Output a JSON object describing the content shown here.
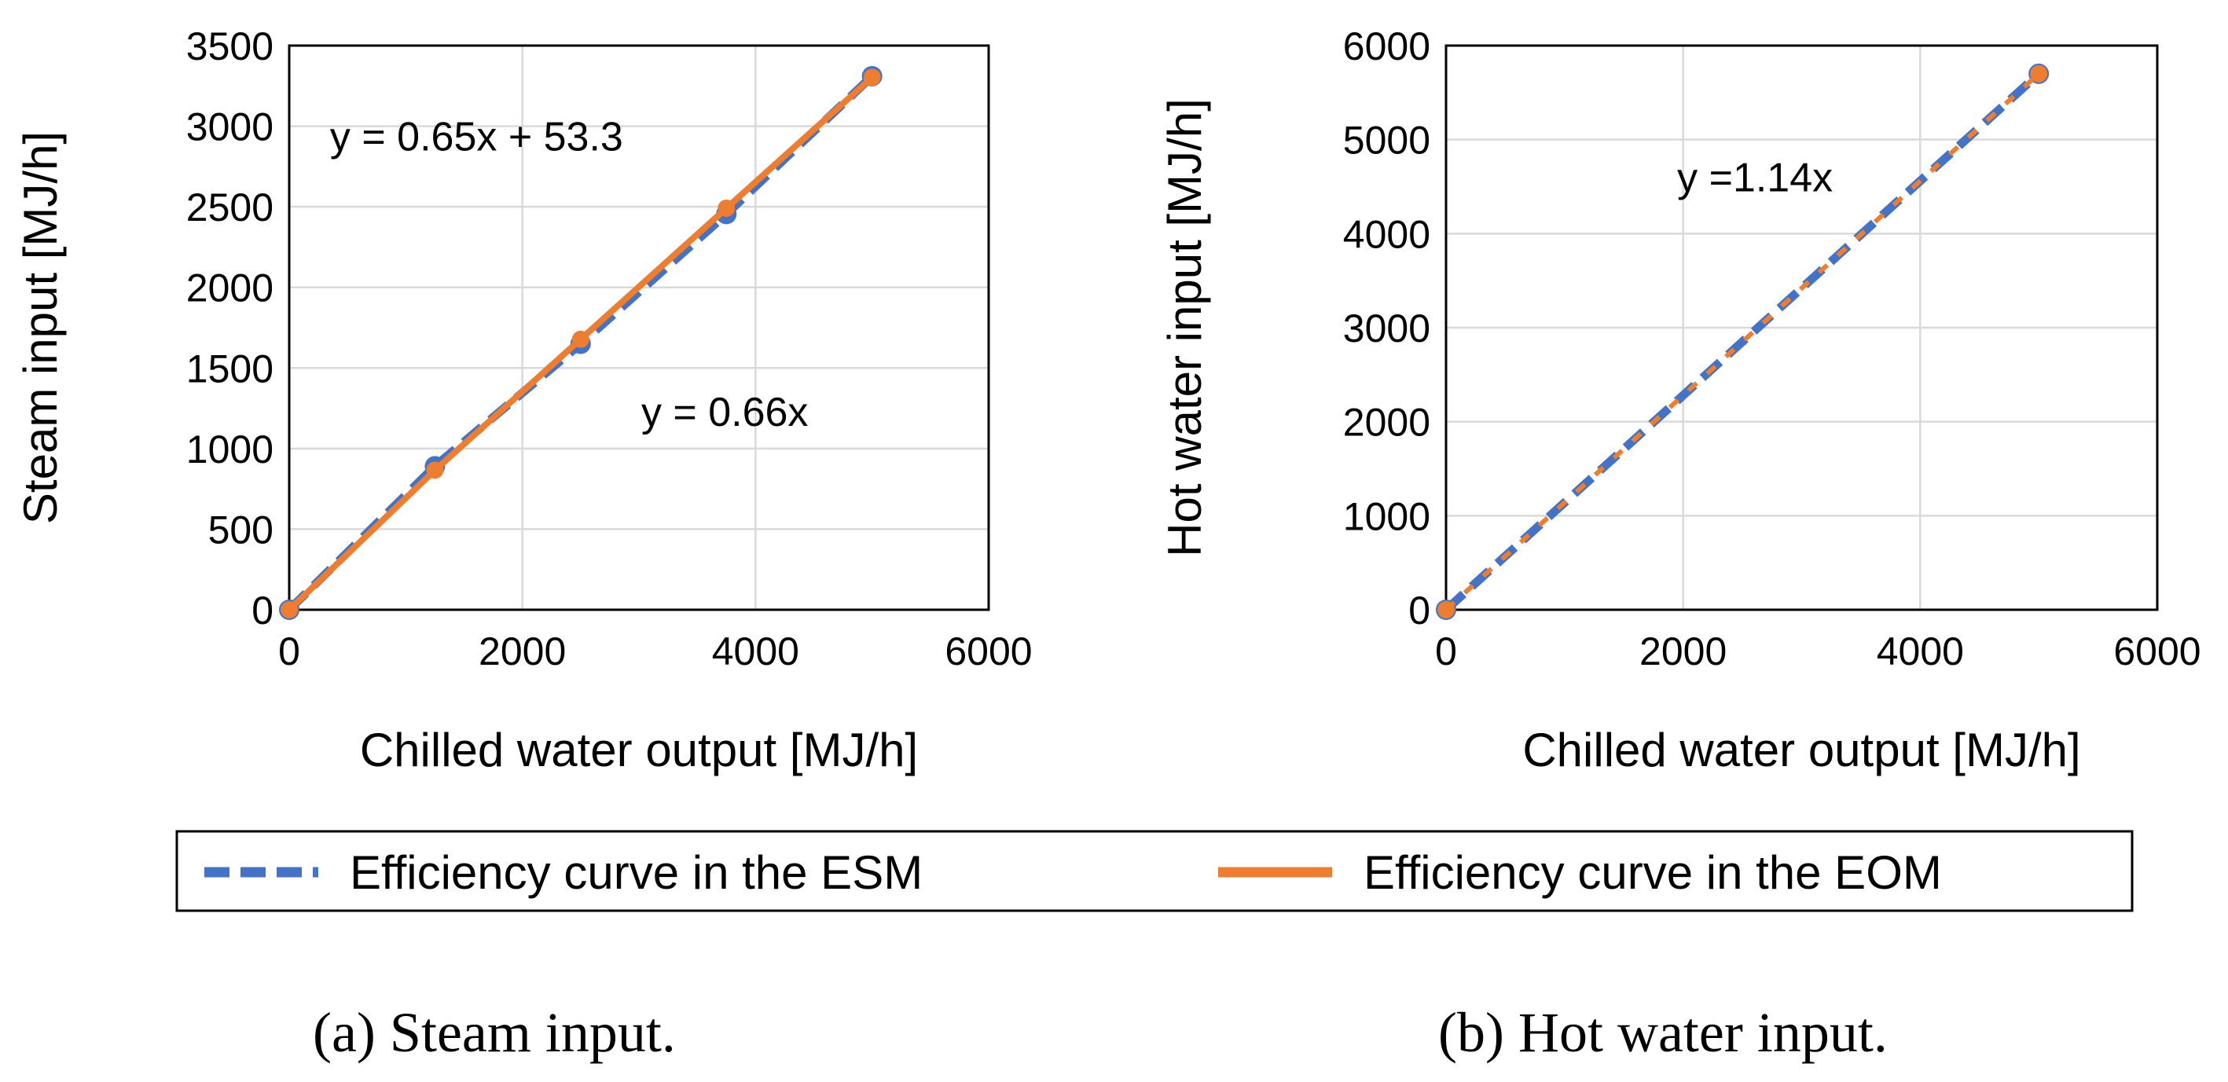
{
  "chart_data": [
    {
      "type": "scatter",
      "id": "a",
      "xlabel": "Chilled water output [MJ/h]",
      "ylabel": "Steam input [MJ/h]",
      "xlim": [
        0,
        6000
      ],
      "ylim": [
        0,
        3500
      ],
      "xticks": [
        0,
        2000,
        4000,
        6000
      ],
      "yticks": [
        0,
        500,
        1000,
        1500,
        2000,
        2500,
        3000,
        3500
      ],
      "grid": true,
      "series": [
        {
          "name": "Efficiency curve in the ESM",
          "color": "#4472C4",
          "style": "dashed",
          "x": [
            0,
            1250,
            2500,
            3750,
            5000
          ],
          "y": [
            0,
            890,
            1650,
            2455,
            3310
          ]
        },
        {
          "name": "Efficiency curve in the EOM",
          "color": "#ED7D31",
          "style": "solid",
          "x": [
            0,
            1250,
            2500,
            3750,
            5000
          ],
          "y": [
            0,
            866,
            1678,
            2491,
            3303
          ]
        }
      ],
      "annotations": [
        {
          "text": "y = 0.65x + 53.3",
          "x": 350,
          "y": 2850
        },
        {
          "text": "y = 0.66x",
          "x": 3020,
          "y": 1140
        }
      ],
      "caption": "(a) Steam input."
    },
    {
      "type": "scatter",
      "id": "b",
      "xlabel": "Chilled water output [MJ/h]",
      "ylabel": "Hot water input [MJ/h]",
      "xlim": [
        0,
        6000
      ],
      "ylim": [
        0,
        6000
      ],
      "xticks": [
        0,
        2000,
        4000,
        6000
      ],
      "yticks": [
        0,
        1000,
        2000,
        3000,
        4000,
        5000,
        6000
      ],
      "grid": true,
      "series": [
        {
          "name": "Efficiency curve in the ESM",
          "color": "#4472C4",
          "style": "dashed",
          "x": [
            0,
            5000
          ],
          "y": [
            0,
            5700
          ]
        },
        {
          "name": "Efficiency curve in the EOM",
          "color": "#ED7D31",
          "style": "dashed",
          "x": [
            0,
            5000
          ],
          "y": [
            0,
            5700
          ]
        }
      ],
      "annotations": [
        {
          "text": "y =1.14x",
          "x": 1950,
          "y": 4450
        }
      ],
      "caption": "(b) Hot water input."
    }
  ],
  "legend": {
    "position": "bottom",
    "items": [
      {
        "label": "Efficiency curve in the ESM",
        "color": "#4472C4",
        "style": "dashed"
      },
      {
        "label": "Efficiency curve in the EOM",
        "color": "#ED7D31",
        "style": "solid"
      }
    ]
  }
}
